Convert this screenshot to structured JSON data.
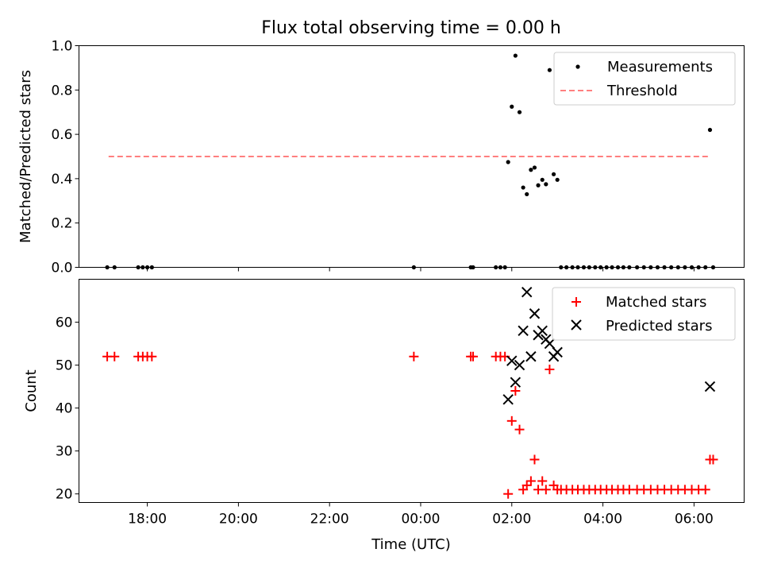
{
  "chart_data": [
    {
      "type": "scatter",
      "title": "Flux total observing time = 0.00 h",
      "xlabel": "",
      "ylabel": "Matched/Predicted stars",
      "xlim": [
        16.5,
        31.1
      ],
      "ylim": [
        0,
        1.0
      ],
      "yticks": [
        0.0,
        0.2,
        0.4,
        0.6,
        0.8,
        1.0
      ],
      "ytick_labels": [
        "0.0",
        "0.2",
        "0.4",
        "0.6",
        "0.8",
        "1.0"
      ],
      "legend_position": "upper right",
      "series": [
        {
          "name": "Measurements",
          "marker": "dot",
          "color": "#000000",
          "points": [
            [
              17.12,
              0.0
            ],
            [
              17.28,
              0.0
            ],
            [
              17.8,
              0.0
            ],
            [
              17.9,
              0.0
            ],
            [
              18.0,
              0.0
            ],
            [
              18.1,
              0.0
            ],
            [
              23.85,
              0.0
            ],
            [
              25.1,
              0.0
            ],
            [
              25.15,
              0.0
            ],
            [
              25.65,
              0.0
            ],
            [
              25.75,
              0.0
            ],
            [
              25.85,
              0.0
            ],
            [
              25.92,
              0.475
            ],
            [
              26.0,
              0.725
            ],
            [
              26.08,
              0.955
            ],
            [
              26.17,
              0.7
            ],
            [
              26.25,
              0.36
            ],
            [
              26.33,
              0.33
            ],
            [
              26.42,
              0.44
            ],
            [
              26.5,
              0.45
            ],
            [
              26.58,
              0.37
            ],
            [
              26.67,
              0.395
            ],
            [
              26.75,
              0.375
            ],
            [
              26.83,
              0.89
            ],
            [
              26.92,
              0.42
            ],
            [
              27.0,
              0.395
            ],
            [
              27.08,
              0.0
            ],
            [
              27.2,
              0.0
            ],
            [
              27.33,
              0.0
            ],
            [
              27.45,
              0.0
            ],
            [
              27.58,
              0.0
            ],
            [
              27.7,
              0.0
            ],
            [
              27.83,
              0.0
            ],
            [
              27.95,
              0.0
            ],
            [
              28.08,
              0.0
            ],
            [
              28.2,
              0.0
            ],
            [
              28.33,
              0.0
            ],
            [
              28.45,
              0.0
            ],
            [
              28.58,
              0.0
            ],
            [
              28.75,
              0.0
            ],
            [
              28.9,
              0.0
            ],
            [
              29.05,
              0.0
            ],
            [
              29.2,
              0.0
            ],
            [
              29.35,
              0.0
            ],
            [
              29.5,
              0.0
            ],
            [
              29.65,
              0.0
            ],
            [
              29.8,
              0.0
            ],
            [
              29.95,
              0.0
            ],
            [
              30.1,
              0.0
            ],
            [
              30.25,
              0.0
            ],
            [
              30.35,
              0.62
            ],
            [
              30.42,
              0.0
            ]
          ]
        },
        {
          "name": "Threshold",
          "marker": "dashed-line",
          "color": "#ff7f7f",
          "points": [
            [
              17.15,
              0.5
            ],
            [
              30.35,
              0.5
            ]
          ]
        }
      ]
    },
    {
      "type": "scatter",
      "title": "",
      "xlabel": "Time (UTC)",
      "ylabel": "Count",
      "xlim": [
        16.5,
        31.1
      ],
      "ylim": [
        18,
        70
      ],
      "yticks": [
        20,
        30,
        40,
        50,
        60
      ],
      "ytick_labels": [
        "20",
        "30",
        "40",
        "50",
        "60"
      ],
      "xticks": [
        18,
        20,
        22,
        24,
        26,
        28,
        30
      ],
      "xtick_labels": [
        "18:00",
        "20:00",
        "22:00",
        "00:00",
        "02:00",
        "04:00",
        "06:00"
      ],
      "legend_position": "upper right",
      "series": [
        {
          "name": "Matched stars",
          "marker": "plus",
          "color": "#ff0000",
          "points": [
            [
              17.12,
              52
            ],
            [
              17.28,
              52
            ],
            [
              17.8,
              52
            ],
            [
              17.9,
              52
            ],
            [
              18.0,
              52
            ],
            [
              18.1,
              52
            ],
            [
              23.85,
              52
            ],
            [
              25.1,
              52
            ],
            [
              25.15,
              52
            ],
            [
              25.65,
              52
            ],
            [
              25.75,
              52
            ],
            [
              25.85,
              52
            ],
            [
              25.92,
              20
            ],
            [
              26.0,
              37
            ],
            [
              26.08,
              44
            ],
            [
              26.17,
              35
            ],
            [
              26.25,
              21
            ],
            [
              26.33,
              22
            ],
            [
              26.42,
              23
            ],
            [
              26.5,
              28
            ],
            [
              26.58,
              21
            ],
            [
              26.67,
              23
            ],
            [
              26.75,
              21
            ],
            [
              26.83,
              49
            ],
            [
              26.92,
              22
            ],
            [
              27.0,
              21
            ],
            [
              27.08,
              21
            ],
            [
              27.2,
              21
            ],
            [
              27.33,
              21
            ],
            [
              27.45,
              21
            ],
            [
              27.58,
              21
            ],
            [
              27.7,
              21
            ],
            [
              27.83,
              21
            ],
            [
              27.95,
              21
            ],
            [
              28.08,
              21
            ],
            [
              28.2,
              21
            ],
            [
              28.33,
              21
            ],
            [
              28.45,
              21
            ],
            [
              28.58,
              21
            ],
            [
              28.75,
              21
            ],
            [
              28.9,
              21
            ],
            [
              29.05,
              21
            ],
            [
              29.2,
              21
            ],
            [
              29.35,
              21
            ],
            [
              29.5,
              21
            ],
            [
              29.65,
              21
            ],
            [
              29.8,
              21
            ],
            [
              29.95,
              21
            ],
            [
              30.1,
              21
            ],
            [
              30.25,
              21
            ],
            [
              30.35,
              28
            ],
            [
              30.42,
              28
            ]
          ]
        },
        {
          "name": "Predicted stars",
          "marker": "x",
          "color": "#000000",
          "points": [
            [
              25.92,
              42
            ],
            [
              26.0,
              51
            ],
            [
              26.08,
              46
            ],
            [
              26.17,
              50
            ],
            [
              26.25,
              58
            ],
            [
              26.33,
              67
            ],
            [
              26.42,
              52
            ],
            [
              26.5,
              62
            ],
            [
              26.58,
              57
            ],
            [
              26.67,
              58
            ],
            [
              26.75,
              56
            ],
            [
              26.83,
              55
            ],
            [
              26.92,
              52
            ],
            [
              27.0,
              53
            ],
            [
              30.35,
              45
            ]
          ]
        }
      ]
    }
  ]
}
